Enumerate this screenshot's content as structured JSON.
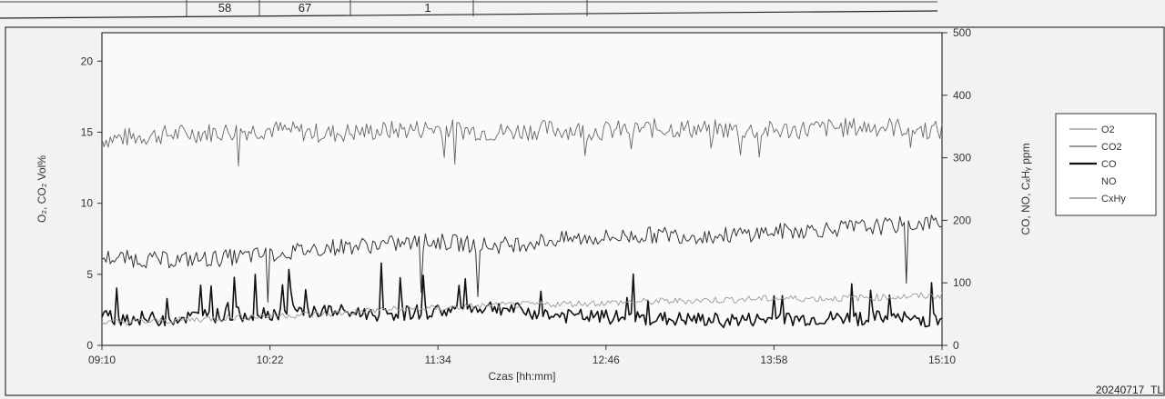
{
  "top_table": {
    "values": [
      "58",
      "67",
      "1"
    ]
  },
  "doc_id": "20240717_TL",
  "chart_data": {
    "type": "line",
    "title": "",
    "xlabel": "Czas [hh:mm]",
    "ylabel_left": "O₂, CO₂ Vol%",
    "ylabel_right": "CO, NO, CₓHᵧ ppm",
    "x_ticks": [
      "09:10",
      "10:22",
      "11:34",
      "12:46",
      "13:58",
      "15:10"
    ],
    "y_left_ticks": [
      0,
      5,
      10,
      15,
      20
    ],
    "y_right_ticks": [
      0,
      100,
      200,
      300,
      400,
      500
    ],
    "y_left_lim": [
      0,
      22
    ],
    "y_right_lim": [
      0,
      500
    ],
    "x_lim_minutes": [
      0,
      360
    ],
    "legend_position": "right",
    "legend": [
      "O2",
      "CO2",
      "CO",
      "NO",
      "CxHy"
    ],
    "grid": false,
    "series": [
      {
        "name": "O2",
        "axis": "left",
        "color": "#666666",
        "x_minutes": [
          0,
          24,
          48,
          72,
          96,
          120,
          144,
          168,
          192,
          216,
          240,
          264,
          288,
          312,
          336,
          360
        ],
        "values": [
          14.5,
          14.8,
          15.0,
          15.2,
          14.9,
          15.1,
          15.3,
          15.0,
          15.2,
          15.1,
          15.3,
          15.2,
          15.1,
          15.3,
          15.4,
          15.1
        ],
        "noise": 0.7
      },
      {
        "name": "CO2",
        "axis": "left",
        "color": "#333333",
        "x_minutes": [
          0,
          24,
          48,
          72,
          96,
          120,
          144,
          168,
          192,
          216,
          240,
          264,
          288,
          312,
          336,
          360
        ],
        "values": [
          6.2,
          6.0,
          6.1,
          6.4,
          6.9,
          7.1,
          7.3,
          7.0,
          7.4,
          7.6,
          7.8,
          7.7,
          8.0,
          8.2,
          8.4,
          8.7
        ],
        "noise": 0.6
      },
      {
        "name": "CO",
        "axis": "right",
        "color": "#111111",
        "x_minutes": [
          0,
          24,
          48,
          72,
          96,
          120,
          144,
          168,
          192,
          216,
          240,
          264,
          288,
          312,
          336,
          360
        ],
        "values": [
          45,
          42,
          48,
          52,
          55,
          50,
          55,
          62,
          48,
          45,
          42,
          40,
          41,
          43,
          44,
          40
        ],
        "noise": 12
      },
      {
        "name": "CxHy",
        "axis": "left",
        "color": "#9a9a9a",
        "x_minutes": [
          0,
          24,
          48,
          72,
          96,
          120,
          144,
          168,
          192,
          216,
          240,
          264,
          288,
          312,
          336,
          360
        ],
        "values": [
          1.6,
          1.7,
          1.9,
          2.1,
          2.2,
          2.5,
          2.6,
          2.8,
          2.9,
          3.0,
          3.1,
          3.2,
          3.3,
          3.3,
          3.4,
          3.5
        ],
        "noise": 0.25
      }
    ]
  }
}
